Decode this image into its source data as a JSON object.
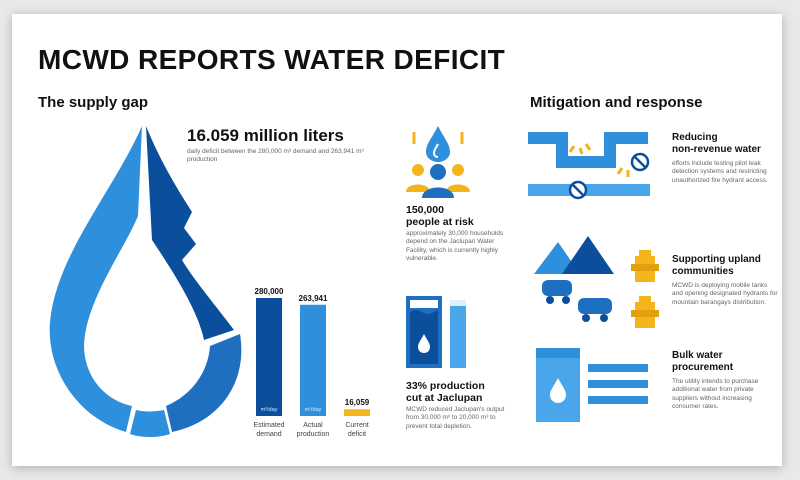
{
  "title": "MCWD REPORTS WATER DEFICIT",
  "supply_gap": {
    "heading": "The supply gap",
    "deficit_figure": "16.059 million liters",
    "deficit_desc": "daily deficit between the 280,000 m³ demand and 263,941 m³ production"
  },
  "chart_data": {
    "type": "bar",
    "categories": [
      "Estimated demand",
      "Actual production",
      "Current deficit"
    ],
    "category_lines": [
      [
        "Estimated",
        "demand"
      ],
      [
        "Actual",
        "production"
      ],
      [
        "Current",
        "deficit"
      ]
    ],
    "values": [
      280000,
      263941,
      16059
    ],
    "value_labels": [
      "280,000",
      "263,941",
      "16,059"
    ],
    "unit_labels": [
      "m³/day",
      "m³/day",
      ""
    ],
    "colors": [
      "#0b4f9c",
      "#2e8fdc",
      "#f3b51b"
    ],
    "ylim": [
      0,
      280000
    ]
  },
  "stats": {
    "people": {
      "head": [
        "150,000",
        "people at risk"
      ],
      "desc": "approximately 30,000 households depend on the Jaclupan Water Facility, which is currently highly vulnerable."
    },
    "production": {
      "head": [
        "33% production",
        "cut at Jaclupan"
      ],
      "desc": "MCWD reduced Jaclupan's output from 30,000 m³ to 20,000 m³ to prevent total depletion."
    }
  },
  "mitigation": {
    "heading": "Mitigation and response",
    "items": [
      {
        "title": [
          "Reducing",
          "non-revenue water"
        ],
        "desc": "efforts include testing pilot leak detection systems and restricting unauthorized fire hydrant access."
      },
      {
        "title": [
          "Supporting upland",
          "communities"
        ],
        "desc": "MCWD is deploying mobile tanks and opening designated hydrants for mountain barangays distribution."
      },
      {
        "title": [
          "Bulk water",
          "procurement"
        ],
        "desc": "The utility intends to purchase additional water from private suppliers without increasing consumer rates."
      }
    ]
  },
  "colors": {
    "dark_blue": "#0b4f9c",
    "mid_blue": "#2e8fdc",
    "light_blue": "#4aa6ea",
    "accent_yellow": "#f3b51b"
  },
  "icons": [
    "water-drop-icon",
    "people-drop-icon",
    "reservoir-icon",
    "pipe-leak-icon",
    "mountain-tank-icon",
    "hydrant-icon",
    "bulk-tank-icon"
  ]
}
